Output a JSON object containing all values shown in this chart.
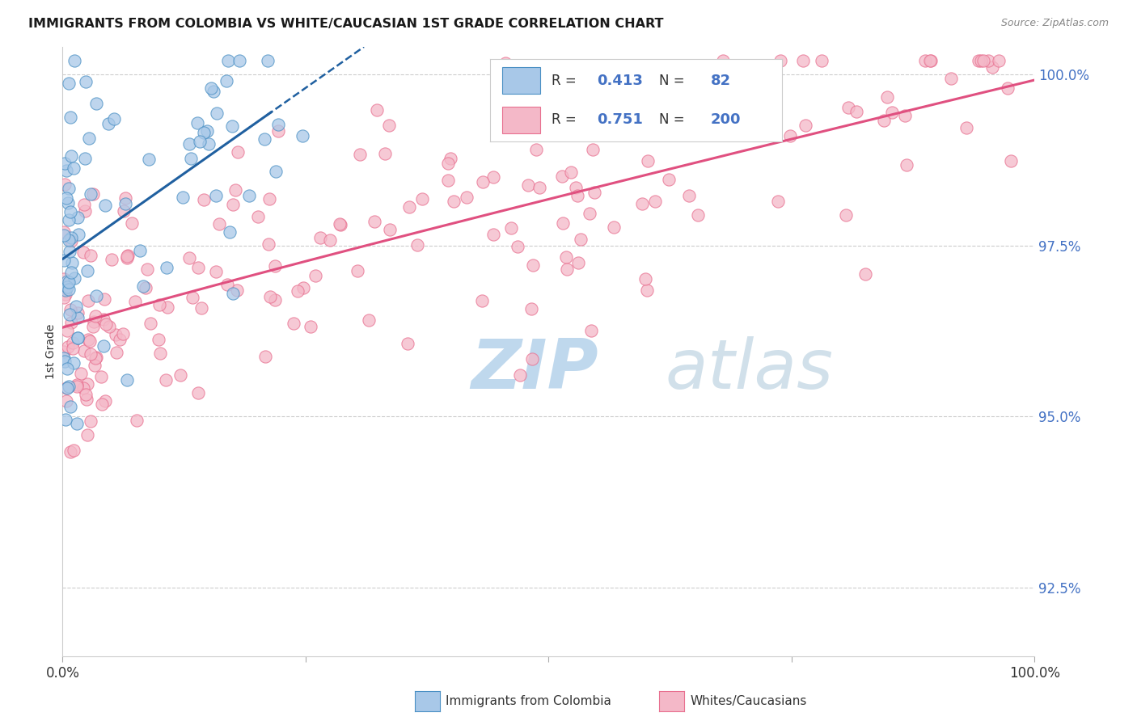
{
  "title": "IMMIGRANTS FROM COLOMBIA VS WHITE/CAUCASIAN 1ST GRADE CORRELATION CHART",
  "source": "Source: ZipAtlas.com",
  "ylabel": "1st Grade",
  "legend_label1": "Immigrants from Colombia",
  "legend_label2": "Whites/Caucasians",
  "blue_fill": "#a8c8e8",
  "pink_fill": "#f4b8c8",
  "blue_edge": "#4a90c4",
  "pink_edge": "#e87090",
  "blue_line_color": "#2060a0",
  "pink_line_color": "#e05080",
  "label_color": "#4472c4",
  "text_color": "#333333",
  "grid_color": "#cccccc",
  "watermark_zip_color": "#c8dff0",
  "watermark_atlas_color": "#d8e8f4",
  "background_color": "#ffffff",
  "ylim_low": 0.915,
  "ylim_high": 1.004,
  "ytick_positions": [
    0.925,
    0.95,
    0.975,
    1.0
  ],
  "ytick_labels": [
    "92.5%",
    "95.0%",
    "97.5%",
    "100.0%"
  ]
}
